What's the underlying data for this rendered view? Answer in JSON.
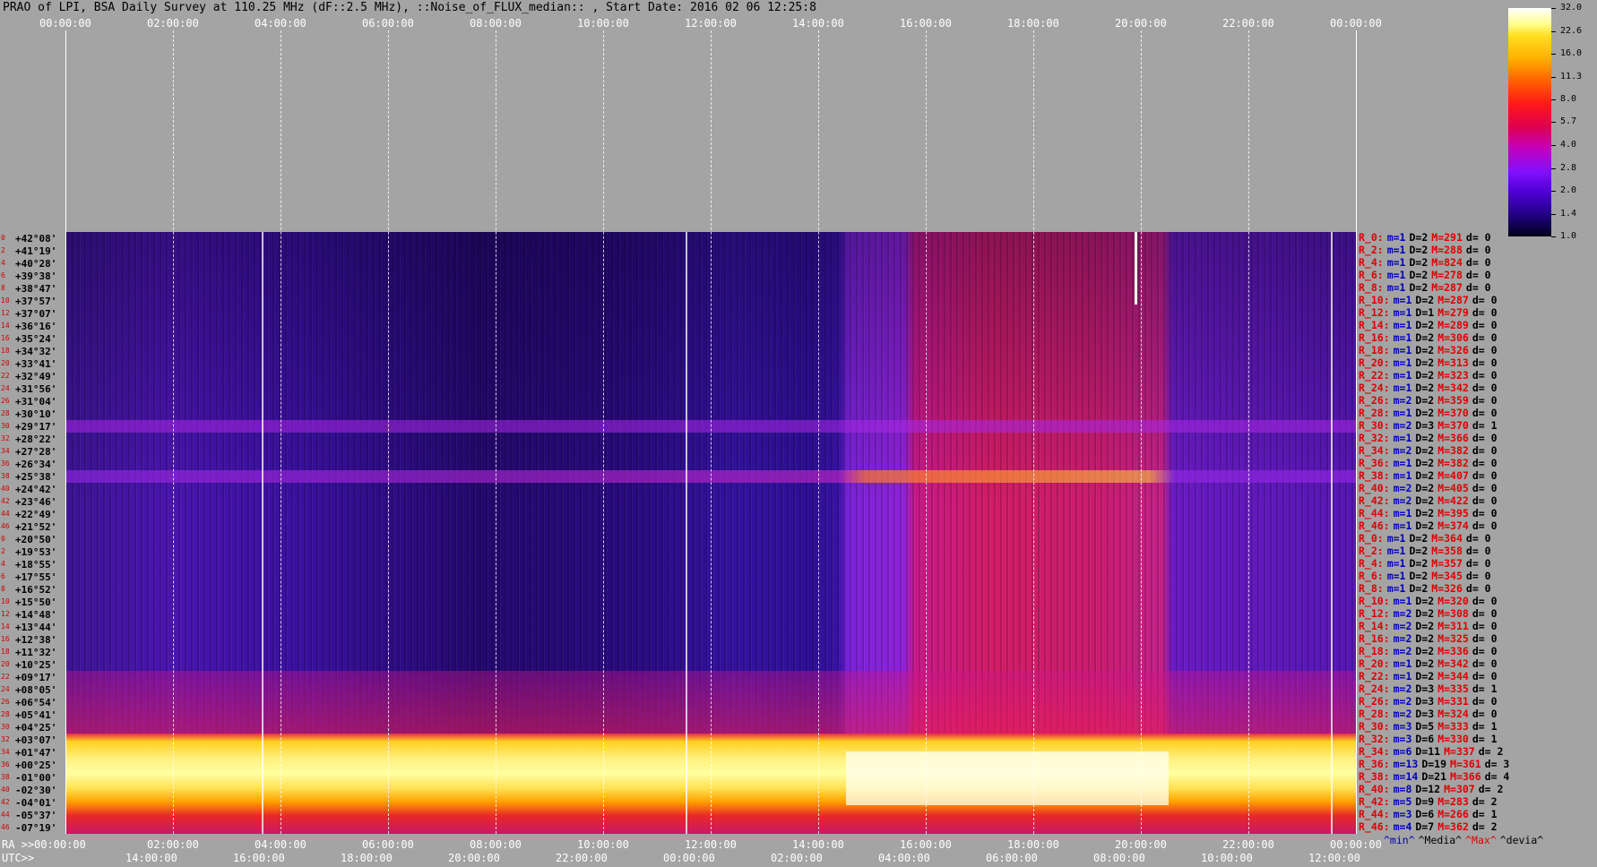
{
  "title": "PRAO of LPI, BSA Daily Survey at 110.25 MHz (dF::2.5 MHz), ::Noise_of_FLUX_median:: , Start Date: 2016 02 06 12:25:8",
  "top_axis": [
    "00:00:00",
    "02:00:00",
    "04:00:00",
    "06:00:00",
    "08:00:00",
    "10:00:00",
    "12:00:00",
    "14:00:00",
    "16:00:00",
    "18:00:00",
    "20:00:00",
    "22:00:00",
    "00:00:00"
  ],
  "bottom_axis": {
    "ra_prefix": "RA >>",
    "ra": [
      "00:00:00",
      "02:00:00",
      "04:00:00",
      "06:00:00",
      "08:00:00",
      "10:00:00",
      "12:00:00",
      "14:00:00",
      "16:00:00",
      "18:00:00",
      "20:00:00",
      "22:00:00",
      "00:00:00"
    ],
    "utc_prefix": "UTC>>",
    "utc": [
      "14:00:00",
      "16:00:00",
      "18:00:00",
      "20:00:00",
      "22:00:00",
      "00:00:00",
      "02:00:00",
      "04:00:00",
      "06:00:00",
      "08:00:00",
      "10:00:00",
      "12:00:00"
    ]
  },
  "rows": [
    {
      "n": "0",
      "dec": "+42°08'",
      "r": "R_0:",
      "m": "m=1",
      "D": "D=2",
      "M": "M=291",
      "d": "d= 0"
    },
    {
      "n": "2",
      "dec": "+41°19'",
      "r": "R_2:",
      "m": "m=1",
      "D": "D=2",
      "M": "M=288",
      "d": "d= 0"
    },
    {
      "n": "4",
      "dec": "+40°28'",
      "r": "R_4:",
      "m": "m=1",
      "D": "D=2",
      "M": "M=824",
      "d": "d= 0"
    },
    {
      "n": "6",
      "dec": "+39°38'",
      "r": "R_6:",
      "m": "m=1",
      "D": "D=2",
      "M": "M=278",
      "d": "d= 0"
    },
    {
      "n": "8",
      "dec": "+38°47'",
      "r": "R_8:",
      "m": "m=1",
      "D": "D=2",
      "M": "M=287",
      "d": "d= 0"
    },
    {
      "n": "10",
      "dec": "+37°57'",
      "r": "R_10:",
      "m": "m=1",
      "D": "D=2",
      "M": "M=287",
      "d": "d= 0"
    },
    {
      "n": "12",
      "dec": "+37°07'",
      "r": "R_12:",
      "m": "m=1",
      "D": "D=1",
      "M": "M=279",
      "d": "d= 0"
    },
    {
      "n": "14",
      "dec": "+36°16'",
      "r": "R_14:",
      "m": "m=1",
      "D": "D=2",
      "M": "M=289",
      "d": "d= 0"
    },
    {
      "n": "16",
      "dec": "+35°24'",
      "r": "R_16:",
      "m": "m=1",
      "D": "D=2",
      "M": "M=306",
      "d": "d= 0"
    },
    {
      "n": "18",
      "dec": "+34°32'",
      "r": "R_18:",
      "m": "m=1",
      "D": "D=2",
      "M": "M=326",
      "d": "d= 0"
    },
    {
      "n": "20",
      "dec": "+33°41'",
      "r": "R_20:",
      "m": "m=1",
      "D": "D=2",
      "M": "M=313",
      "d": "d= 0"
    },
    {
      "n": "22",
      "dec": "+32°49'",
      "r": "R_22:",
      "m": "m=1",
      "D": "D=2",
      "M": "M=323",
      "d": "d= 0"
    },
    {
      "n": "24",
      "dec": "+31°56'",
      "r": "R_24:",
      "m": "m=1",
      "D": "D=2",
      "M": "M=342",
      "d": "d= 0"
    },
    {
      "n": "26",
      "dec": "+31°04'",
      "r": "R_26:",
      "m": "m=2",
      "D": "D=2",
      "M": "M=359",
      "d": "d= 0"
    },
    {
      "n": "28",
      "dec": "+30°10'",
      "r": "R_28:",
      "m": "m=1",
      "D": "D=2",
      "M": "M=370",
      "d": "d= 0"
    },
    {
      "n": "30",
      "dec": "+29°17'",
      "r": "R_30:",
      "m": "m=2",
      "D": "D=3",
      "M": "M=370",
      "d": "d= 1"
    },
    {
      "n": "32",
      "dec": "+28°22'",
      "r": "R_32:",
      "m": "m=1",
      "D": "D=2",
      "M": "M=366",
      "d": "d= 0"
    },
    {
      "n": "34",
      "dec": "+27°28'",
      "r": "R_34:",
      "m": "m=2",
      "D": "D=2",
      "M": "M=382",
      "d": "d= 0"
    },
    {
      "n": "36",
      "dec": "+26°34'",
      "r": "R_36:",
      "m": "m=1",
      "D": "D=2",
      "M": "M=382",
      "d": "d= 0"
    },
    {
      "n": "38",
      "dec": "+25°38'",
      "r": "R_38:",
      "m": "m=1",
      "D": "D=2",
      "M": "M=407",
      "d": "d= 0"
    },
    {
      "n": "40",
      "dec": "+24°42'",
      "r": "R_40:",
      "m": "m=2",
      "D": "D=2",
      "M": "M=405",
      "d": "d= 0"
    },
    {
      "n": "42",
      "dec": "+23°46'",
      "r": "R_42:",
      "m": "m=2",
      "D": "D=2",
      "M": "M=422",
      "d": "d= 0"
    },
    {
      "n": "44",
      "dec": "+22°49'",
      "r": "R_44:",
      "m": "m=1",
      "D": "D=2",
      "M": "M=395",
      "d": "d= 0"
    },
    {
      "n": "46",
      "dec": "+21°52'",
      "r": "R_46:",
      "m": "m=1",
      "D": "D=2",
      "M": "M=374",
      "d": "d= 0"
    },
    {
      "n": "0",
      "dec": "+20°50'",
      "r": "R_0:",
      "m": "m=1",
      "D": "D=2",
      "M": "M=364",
      "d": "d= 0"
    },
    {
      "n": "2",
      "dec": "+19°53'",
      "r": "R_2:",
      "m": "m=1",
      "D": "D=2",
      "M": "M=358",
      "d": "d= 0"
    },
    {
      "n": "4",
      "dec": "+18°55'",
      "r": "R_4:",
      "m": "m=1",
      "D": "D=2",
      "M": "M=357",
      "d": "d= 0"
    },
    {
      "n": "6",
      "dec": "+17°55'",
      "r": "R_6:",
      "m": "m=1",
      "D": "D=2",
      "M": "M=345",
      "d": "d= 0"
    },
    {
      "n": "8",
      "dec": "+16°52'",
      "r": "R_8:",
      "m": "m=1",
      "D": "D=2",
      "M": "M=326",
      "d": "d= 0"
    },
    {
      "n": "10",
      "dec": "+15°50'",
      "r": "R_10:",
      "m": "m=1",
      "D": "D=2",
      "M": "M=320",
      "d": "d= 0"
    },
    {
      "n": "12",
      "dec": "+14°48'",
      "r": "R_12:",
      "m": "m=2",
      "D": "D=2",
      "M": "M=308",
      "d": "d= 0"
    },
    {
      "n": "14",
      "dec": "+13°44'",
      "r": "R_14:",
      "m": "m=2",
      "D": "D=2",
      "M": "M=311",
      "d": "d= 0"
    },
    {
      "n": "16",
      "dec": "+12°38'",
      "r": "R_16:",
      "m": "m=2",
      "D": "D=2",
      "M": "M=325",
      "d": "d= 0"
    },
    {
      "n": "18",
      "dec": "+11°32'",
      "r": "R_18:",
      "m": "m=2",
      "D": "D=2",
      "M": "M=336",
      "d": "d= 0"
    },
    {
      "n": "20",
      "dec": "+10°25'",
      "r": "R_20:",
      "m": "m=1",
      "D": "D=2",
      "M": "M=342",
      "d": "d= 0"
    },
    {
      "n": "22",
      "dec": "+09°17'",
      "r": "R_22:",
      "m": "m=1",
      "D": "D=2",
      "M": "M=344",
      "d": "d= 0"
    },
    {
      "n": "24",
      "dec": "+08°05'",
      "r": "R_24:",
      "m": "m=2",
      "D": "D=3",
      "M": "M=335",
      "d": "d= 1"
    },
    {
      "n": "26",
      "dec": "+06°54'",
      "r": "R_26:",
      "m": "m=2",
      "D": "D=3",
      "M": "M=331",
      "d": "d= 0"
    },
    {
      "n": "28",
      "dec": "+05°41'",
      "r": "R_28:",
      "m": "m=2",
      "D": "D=3",
      "M": "M=324",
      "d": "d= 0"
    },
    {
      "n": "30",
      "dec": "+04°25'",
      "r": "R_30:",
      "m": "m=3",
      "D": "D=5",
      "M": "M=333",
      "d": "d= 1"
    },
    {
      "n": "32",
      "dec": "+03°07'",
      "r": "R_32:",
      "m": "m=3",
      "D": "D=6",
      "M": "M=330",
      "d": "d= 1"
    },
    {
      "n": "34",
      "dec": "+01°47'",
      "r": "R_34:",
      "m": "m=6",
      "D": "D=11",
      "M": "M=337",
      "d": "d= 2"
    },
    {
      "n": "36",
      "dec": "+00°25'",
      "r": "R_36:",
      "m": "m=13",
      "D": "D=19",
      "M": "M=361",
      "d": "d= 3"
    },
    {
      "n": "38",
      "dec": "-01°00'",
      "r": "R_38:",
      "m": "m=14",
      "D": "D=21",
      "M": "M=366",
      "d": "d= 4"
    },
    {
      "n": "40",
      "dec": "-02°30'",
      "r": "R_40:",
      "m": "m=8",
      "D": "D=12",
      "M": "M=307",
      "d": "d= 2"
    },
    {
      "n": "42",
      "dec": "-04°01'",
      "r": "R_42:",
      "m": "m=5",
      "D": "D=9",
      "M": "M=283",
      "d": "d= 2"
    },
    {
      "n": "44",
      "dec": "-05°37'",
      "r": "R_44:",
      "m": "m=3",
      "D": "D=6",
      "M": "M=266",
      "d": "d= 1"
    },
    {
      "n": "46",
      "dec": "-07°19'",
      "r": "R_46:",
      "m": "m=4",
      "D": "D=7",
      "M": "M=362",
      "d": "d= 2"
    }
  ],
  "stats_legend": [
    "^min^",
    "^Media^",
    "^Max^",
    "^devia^"
  ],
  "colorbar": {
    "log": true,
    "lim": [
      1,
      32
    ],
    "ticks": [
      {
        "value": 32,
        "label": "32.0"
      },
      22.6,
      {
        "value": 16,
        "label": "16.0"
      },
      11.3,
      {
        "value": 8,
        "label": "8.0"
      },
      5.7,
      {
        "value": 4,
        "label": "4.0"
      },
      2.8,
      {
        "value": 2,
        "label": "2.0"
      },
      1.4,
      {
        "value": 1,
        "label": "1.0"
      }
    ]
  }
}
